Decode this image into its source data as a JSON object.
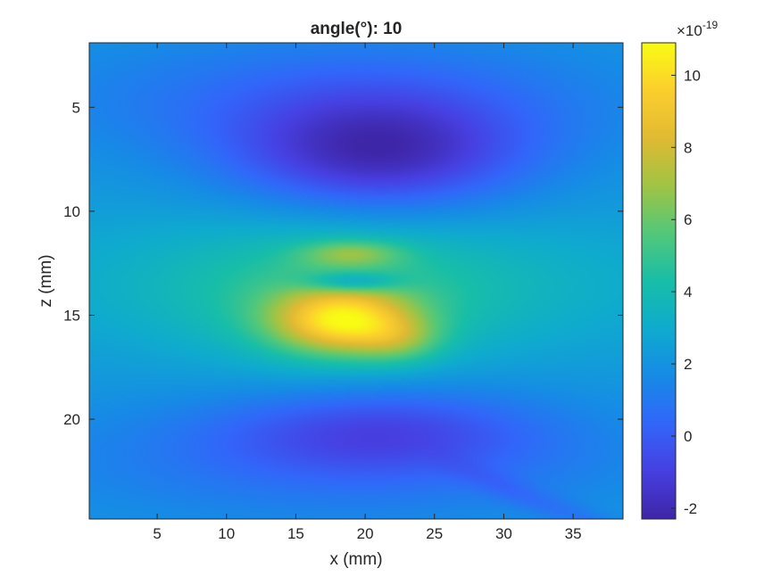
{
  "chart_data": {
    "type": "heatmap",
    "title": "angle(°): 10",
    "xlabel": "x (mm)",
    "ylabel": "z (mm)",
    "xlim": [
      0.1,
      38.6
    ],
    "ylim": [
      1.9,
      24.8
    ],
    "y_reversed": true,
    "xticks": [
      5,
      10,
      15,
      20,
      25,
      30,
      35
    ],
    "yticks": [
      5,
      10,
      15,
      20
    ],
    "colormap": "parula",
    "colorbar": {
      "exponent_label": "×10",
      "exponent_value": "-19",
      "ticks": [
        -2,
        0,
        2,
        4,
        6,
        8,
        10
      ],
      "clim": [
        -2.3,
        10.9
      ]
    },
    "field_features": [
      {
        "feature": "background",
        "value": 2.2
      },
      {
        "feature": "upper trough",
        "x": 21,
        "z": 7.3,
        "sx": 7.5,
        "sz": 2.0,
        "value": -3.8
      },
      {
        "feature": "upper shadow",
        "x": 18,
        "z": 4.5,
        "sx": 15.0,
        "sz": 2.2,
        "value": -1.6
      },
      {
        "feature": "side lobes",
        "x": 19,
        "z": 13.5,
        "sx": 16.0,
        "sz": 2.4,
        "value": 1.7
      },
      {
        "feature": "central band",
        "x": 18,
        "z": 14.5,
        "sx": 7.0,
        "sz": 2.5,
        "value": 1.5
      },
      {
        "feature": "focal peak",
        "x": 18.3,
        "z": 15.3,
        "sx": 3.5,
        "sz": 1.1,
        "value": 6.0
      },
      {
        "feature": "peak tail",
        "x": 22.5,
        "z": 16.2,
        "sx": 2.2,
        "sz": 0.8,
        "value": 2.0
      },
      {
        "feature": "upper lobe",
        "x": 19,
        "z": 12.0,
        "sx": 2.6,
        "sz": 0.45,
        "value": 2.5
      },
      {
        "feature": "null band",
        "x": 19,
        "z": 13.4,
        "sx": 2.4,
        "sz": 0.35,
        "value": -3.0
      },
      {
        "feature": "lower trough",
        "x": 21,
        "z": 20.5,
        "sx": 8.0,
        "sz": 1.5,
        "value": -2.2
      },
      {
        "feature": "lower shadow",
        "x": 18,
        "z": 22.0,
        "sx": 16.0,
        "sz": 2.2,
        "value": -1.4
      }
    ]
  }
}
